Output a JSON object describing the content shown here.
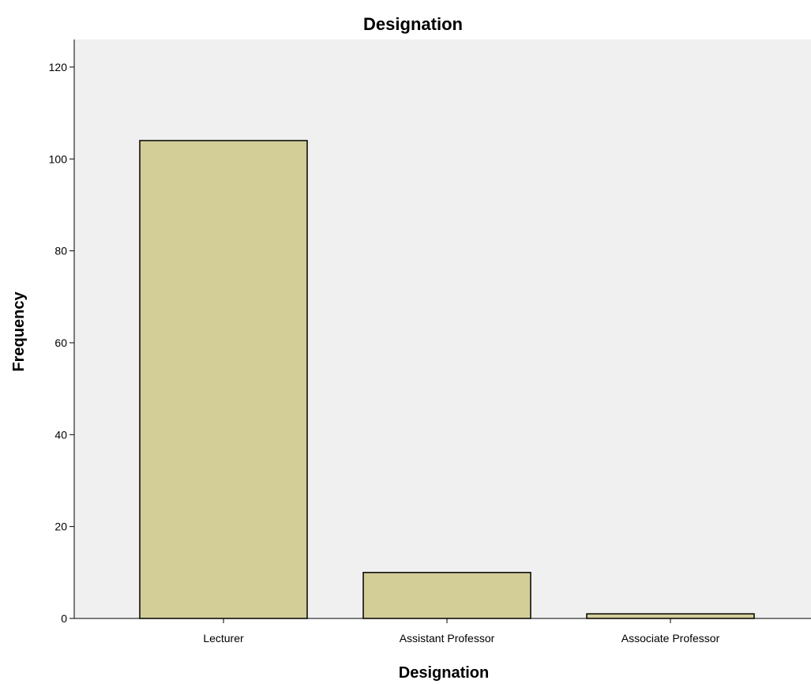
{
  "chart_data": {
    "type": "bar",
    "title": "Designation",
    "xlabel": "Designation",
    "ylabel": "Frequency",
    "categories": [
      "Lecturer",
      "Assistant Professor",
      "Associate Professor"
    ],
    "values": [
      104,
      10,
      1
    ],
    "ylim": [
      0,
      126
    ],
    "yticks": [
      0,
      20,
      40,
      60,
      80,
      100,
      120
    ],
    "grid": false,
    "legend": "none",
    "colors": {
      "bar_fill": "#d3ce97",
      "bar_stroke": "#000000",
      "plot_background": "#f0f0f0",
      "axis": "#000000"
    }
  }
}
